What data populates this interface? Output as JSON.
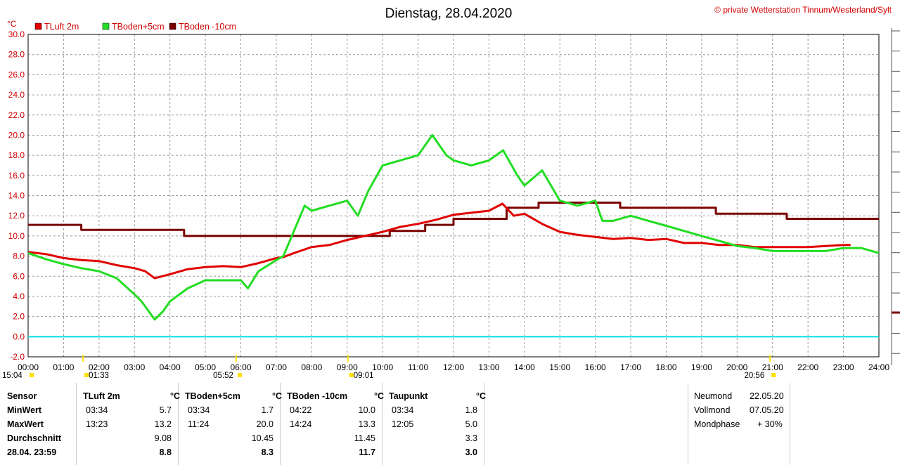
{
  "header": {
    "title": "Dienstag, 28.04.2020",
    "copyright": "© private Wetterstation Tinnum/Westerland/Sylt",
    "unit": "°C"
  },
  "colors": {
    "tluft": "#e00000",
    "tboden5": "#22dd22",
    "tboden10": "#7a0000",
    "zero_line": "#00e0e0",
    "sun": "#ffe000"
  },
  "chart_data": {
    "type": "line",
    "title": "Dienstag, 28.04.2020",
    "ylabel": "°C",
    "ylim": [
      -2,
      30
    ],
    "xlim": [
      0,
      24
    ],
    "grid": true,
    "legend_position": "top-left",
    "y_ticks": [
      "30.0",
      "28.0",
      "26.0",
      "24.0",
      "22.0",
      "20.0",
      "18.0",
      "16.0",
      "14.0",
      "12.0",
      "10.0",
      "8.0",
      "6.0",
      "4.0",
      "2.0",
      "0.0",
      "-2.0"
    ],
    "x_ticks": [
      "00:00",
      "01:00",
      "02:00",
      "03:00",
      "04:00",
      "05:00",
      "06:00",
      "07:00",
      "08:00",
      "09:00",
      "10:00",
      "11:00",
      "12:00",
      "13:00",
      "14:00",
      "15:00",
      "16:00",
      "17:00",
      "18:00",
      "19:00",
      "20:00",
      "21:00",
      "22:00",
      "23:00",
      "24:00"
    ],
    "series": [
      {
        "name": "TLuft 2m",
        "color": "#e00000",
        "x": [
          0,
          0.5,
          1,
          1.5,
          2,
          2.5,
          3,
          3.3,
          3.57,
          4,
          4.5,
          5,
          5.5,
          6,
          6.5,
          7,
          7.2,
          7.5,
          8,
          8.5,
          9,
          9.5,
          10,
          10.5,
          11,
          11.5,
          12,
          12.5,
          13,
          13.38,
          13.7,
          14,
          14.5,
          15,
          15.5,
          16,
          16.5,
          17,
          17.5,
          18,
          18.5,
          19,
          19.5,
          20,
          20.5,
          21,
          21.5,
          22,
          22.5,
          23,
          23.2
        ],
        "y": [
          8.4,
          8.2,
          7.8,
          7.6,
          7.5,
          7.1,
          6.8,
          6.5,
          5.8,
          6.2,
          6.7,
          6.9,
          7.0,
          6.9,
          7.3,
          7.8,
          7.9,
          8.3,
          8.9,
          9.1,
          9.6,
          10.0,
          10.4,
          10.9,
          11.2,
          11.6,
          12.1,
          12.3,
          12.5,
          13.2,
          12.0,
          12.2,
          11.2,
          10.4,
          10.1,
          9.9,
          9.7,
          9.8,
          9.6,
          9.7,
          9.3,
          9.3,
          9.1,
          9.1,
          8.9,
          8.9,
          8.9,
          8.9,
          9.0,
          9.1,
          9.1
        ]
      },
      {
        "name": "TBoden+5cm",
        "color": "#22dd22",
        "x": [
          0,
          0.5,
          1,
          1.5,
          2,
          2.5,
          3,
          3.2,
          3.57,
          3.8,
          4,
          4.5,
          5,
          5.5,
          6,
          6.2,
          6.5,
          7,
          7.2,
          7.5,
          7.8,
          8,
          8.5,
          9,
          9.3,
          9.6,
          10,
          10.5,
          11,
          11.4,
          11.8,
          12,
          12.5,
          13,
          13.4,
          13.8,
          14,
          14.5,
          15,
          15.5,
          16,
          16.2,
          16.5,
          17,
          17.5,
          18,
          18.5,
          19,
          19.5,
          20,
          20.5,
          21,
          21.5,
          22,
          22.5,
          23,
          23.5,
          24
        ],
        "y": [
          8.3,
          7.7,
          7.2,
          6.8,
          6.5,
          5.8,
          4.2,
          3.5,
          1.7,
          2.5,
          3.5,
          4.8,
          5.6,
          5.6,
          5.6,
          4.8,
          6.5,
          7.6,
          8.0,
          10.5,
          13.0,
          12.5,
          13.0,
          13.5,
          12.0,
          14.5,
          17.0,
          17.5,
          18.0,
          20.0,
          18.0,
          17.5,
          17.0,
          17.5,
          18.5,
          16.0,
          15.0,
          16.5,
          13.5,
          13.0,
          13.5,
          11.5,
          11.5,
          12.0,
          11.5,
          11.0,
          10.5,
          10.0,
          9.5,
          9.0,
          8.8,
          8.5,
          8.5,
          8.5,
          8.5,
          8.8,
          8.8,
          8.3
        ]
      },
      {
        "name": "TBoden -10cm",
        "color": "#7a0000",
        "x": [
          0,
          1.5,
          1.5,
          4.4,
          4.4,
          10.2,
          10.2,
          11.2,
          11.2,
          12,
          12,
          13.5,
          13.5,
          14.4,
          14.4,
          16.7,
          16.7,
          19.4,
          19.4,
          21.4,
          21.4,
          24
        ],
        "y": [
          11.1,
          11.1,
          10.6,
          10.6,
          10.0,
          10.0,
          10.5,
          10.5,
          11.1,
          11.1,
          11.7,
          11.7,
          12.8,
          12.8,
          13.3,
          13.3,
          12.8,
          12.8,
          12.2,
          12.2,
          11.7,
          11.7
        ]
      }
    ],
    "reference_line": {
      "y": 0.0,
      "color": "#00e0e0"
    },
    "sun_markers": [
      {
        "label": "15:04",
        "hour": 0.0
      },
      {
        "label": "01:33",
        "hour": 1.55
      },
      {
        "label": "05:52",
        "hour": 5.87
      },
      {
        "label": "09:01",
        "hour": 9.02
      },
      {
        "label": "20:56",
        "hour": 20.93
      }
    ]
  },
  "table": {
    "sensor_col": {
      "header": "Sensor",
      "rows": [
        "MinWert",
        "MaxWert",
        "Durchschnitt",
        "28.04. 23:59"
      ]
    },
    "groups": [
      {
        "name": "TLuft 2m",
        "unit": "°C",
        "min_time": "03:34",
        "min": "5.7",
        "max_time": "13:23",
        "max": "13.2",
        "avg": "9.08",
        "current": "8.8"
      },
      {
        "name": "TBoden+5cm",
        "unit": "°C",
        "min_time": "03:34",
        "min": "1.7",
        "max_time": "11:24",
        "max": "20.0",
        "avg": "10.45",
        "current": "8.3"
      },
      {
        "name": "TBoden -10cm",
        "unit": "°C",
        "min_time": "04:22",
        "min": "10.0",
        "max_time": "14:24",
        "max": "13.3",
        "avg": "11.45",
        "current": "11.7"
      },
      {
        "name": "Taupunkt",
        "unit": "°C",
        "min_time": "03:34",
        "min": "1.8",
        "max_time": "12:05",
        "max": "5.0",
        "avg": "3.3",
        "current": "3.0"
      }
    ],
    "moon": [
      {
        "label": "Neumond",
        "value": "22.05.20"
      },
      {
        "label": "Vollmond",
        "value": "07.05.20"
      },
      {
        "label": "Mondphase",
        "value": "+ 30%"
      }
    ]
  }
}
